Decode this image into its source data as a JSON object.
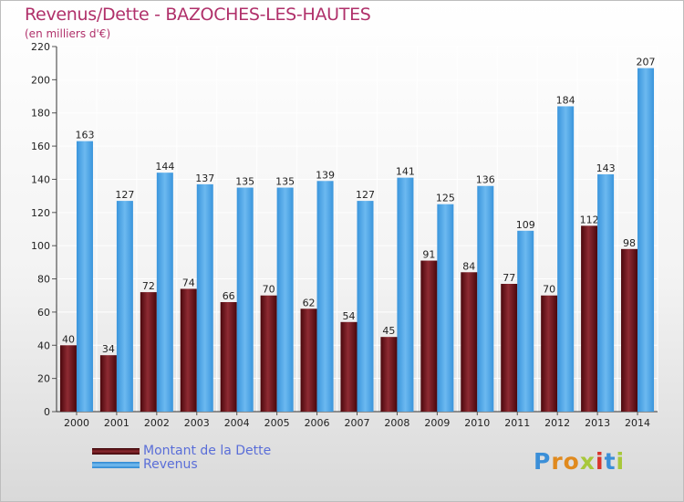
{
  "header": {
    "title": "Revenus/Dette - BAZOCHES-LES-HAUTES",
    "subtitle": "(en milliers d'€)"
  },
  "legend": {
    "items": [
      {
        "label": "Montant de la Dette",
        "color": "#6b0f16"
      },
      {
        "label": "Revenus",
        "color": "#4da6e8"
      }
    ]
  },
  "logo": {
    "letters": [
      "P",
      "r",
      "o",
      "x",
      "i",
      "t",
      "i"
    ],
    "colors": [
      "#3b8fd8",
      "#e08a1e",
      "#e08a1e",
      "#a8c83a",
      "#d8342c",
      "#3b8fd8",
      "#a8c83a"
    ]
  },
  "chart_data": {
    "type": "bar",
    "categories": [
      "2000",
      "2001",
      "2002",
      "2003",
      "2004",
      "2005",
      "2006",
      "2007",
      "2008",
      "2009",
      "2010",
      "2011",
      "2012",
      "2013",
      "2014"
    ],
    "series": [
      {
        "name": "Montant de la Dette",
        "color": "#6b0f16",
        "values": [
          40,
          34,
          72,
          74,
          66,
          70,
          62,
          54,
          45,
          91,
          84,
          77,
          70,
          112,
          98
        ]
      },
      {
        "name": "Revenus",
        "color": "#4da6e8",
        "values": [
          163,
          127,
          144,
          137,
          135,
          135,
          139,
          127,
          141,
          125,
          136,
          109,
          184,
          143,
          207
        ]
      }
    ],
    "yticks": [
      0,
      20,
      40,
      60,
      80,
      100,
      120,
      140,
      160,
      180,
      200,
      220
    ],
    "ylim": [
      0,
      220
    ],
    "grid": true,
    "legend_position": "bottom-left"
  }
}
